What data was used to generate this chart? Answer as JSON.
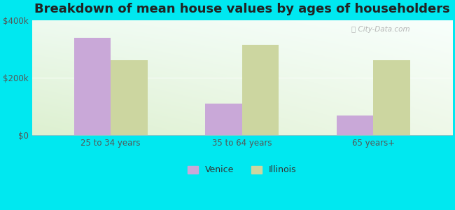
{
  "title": "Breakdown of mean house values by ages of householders",
  "categories": [
    "25 to 34 years",
    "35 to 64 years",
    "65 years+"
  ],
  "venice_values": [
    340000,
    110000,
    68000
  ],
  "illinois_values": [
    262000,
    315000,
    262000
  ],
  "venice_color": "#c9a8d8",
  "illinois_color": "#ccd6a0",
  "background_color": "#00e8f0",
  "ylim": [
    0,
    400000
  ],
  "yticks": [
    0,
    200000,
    400000
  ],
  "ytick_labels": [
    "$0",
    "$200k",
    "$400k"
  ],
  "legend_venice": "Venice",
  "legend_illinois": "Illinois",
  "bar_width": 0.28,
  "title_fontsize": 13,
  "tick_fontsize": 8.5,
  "legend_fontsize": 9,
  "grad_top_left": "#eefaf0",
  "grad_top_right": "#f8fffc",
  "grad_bottom_left": "#ddf0d0",
  "grad_bottom_right": "#eef8e8"
}
